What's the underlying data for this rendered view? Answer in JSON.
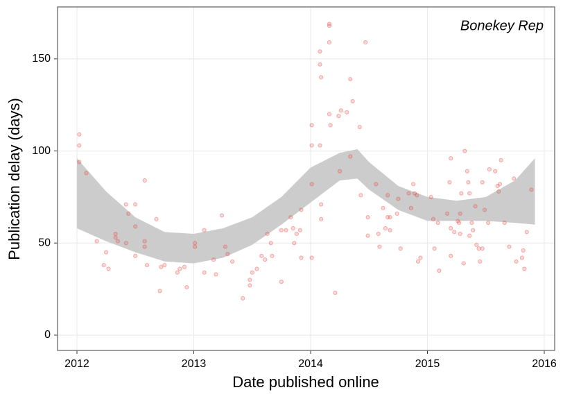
{
  "chart_data": {
    "type": "scatter",
    "xlabel": "Date published online",
    "ylabel": "Publication delay (days)",
    "annotation": "Bonekey Rep",
    "xlim": [
      2011.834,
      2016.089
    ],
    "ylim": [
      -8.3,
      178.2
    ],
    "xticks": [
      2012,
      2013,
      2014,
      2015,
      2016
    ],
    "yticks": [
      0,
      50,
      100,
      150
    ],
    "grid": true,
    "series": [
      {
        "color": "#e8433a",
        "x": [
          2012.02,
          2012.02,
          2012.02,
          2012.08,
          2012.17,
          2012.23,
          2012.25,
          2012.27,
          2012.33,
          2012.33,
          2012.35,
          2012.42,
          2012.44,
          2012.42,
          2012.5,
          2012.5,
          2012.5,
          2012.58,
          2012.58,
          2012.58,
          2012.6,
          2012.68,
          2012.71,
          2012.72,
          2012.75,
          2012.86,
          2012.88,
          2012.92,
          2012.94,
          2013.01,
          2013.01,
          2013.09,
          2013.09,
          2013.17,
          2013.19,
          2013.24,
          2013.27,
          2013.29,
          2013.33,
          2013.42,
          2013.48,
          2013.48,
          2013.5,
          2013.54,
          2013.58,
          2013.61,
          2013.63,
          2013.66,
          2013.67,
          2013.75,
          2013.75,
          2013.79,
          2013.83,
          2013.85,
          2013.86,
          2013.88,
          2013.91,
          2013.92,
          2013.92,
          2014.01,
          2014.01,
          2014.01,
          2014.01,
          2014.08,
          2014.08,
          2014.08,
          2014.09,
          2014.09,
          2014.09,
          2014.16,
          2014.16,
          2014.16,
          2014.16,
          2014.17,
          2014.21,
          2014.24,
          2014.25,
          2014.26,
          2014.31,
          2014.34,
          2014.34,
          2014.36,
          2014.42,
          2014.43,
          2014.47,
          2014.49,
          2014.49,
          2014.56,
          2014.58,
          2014.59,
          2014.62,
          2014.64,
          2014.66,
          2014.66,
          2014.68,
          2014.68,
          2014.74,
          2014.75,
          2014.77,
          2014.84,
          2014.86,
          2014.88,
          2014.89,
          2014.91,
          2014.92,
          2014.94,
          2015.03,
          2015.05,
          2015.06,
          2015.09,
          2015.1,
          2015.17,
          2015.19,
          2015.2,
          2015.2,
          2015.2,
          2015.23,
          2015.26,
          2015.27,
          2015.28,
          2015.28,
          2015.29,
          2015.31,
          2015.32,
          2015.34,
          2015.35,
          2015.36,
          2015.36,
          2015.38,
          2015.39,
          2015.41,
          2015.42,
          2015.44,
          2015.45,
          2015.47,
          2015.47,
          2015.49,
          2015.52,
          2015.53,
          2015.58,
          2015.6,
          2015.61,
          2015.62,
          2015.63,
          2015.66,
          2015.7,
          2015.74,
          2015.76,
          2015.81,
          2015.82,
          2015.83,
          2015.85,
          2015.89
        ],
        "values": [
          109,
          103,
          94,
          88,
          51,
          38,
          45,
          36,
          55,
          53,
          51,
          71,
          66,
          50,
          71,
          59,
          43,
          84,
          51,
          48,
          38,
          63,
          24,
          37,
          38,
          34,
          36,
          37,
          26,
          50,
          48,
          57,
          34,
          41,
          33,
          65,
          48,
          44,
          40,
          20,
          30,
          27,
          34,
          36,
          43,
          41,
          55,
          50,
          43,
          29,
          57,
          57,
          64,
          58,
          50,
          55,
          57,
          42,
          68,
          114,
          103,
          82,
          42,
          103,
          147,
          154,
          140,
          71,
          63,
          169,
          168,
          159,
          120,
          114,
          23,
          119,
          89,
          122,
          121,
          139,
          97,
          127,
          113,
          76,
          159,
          64,
          54,
          82,
          55,
          48,
          69,
          58,
          76,
          64,
          64,
          57,
          66,
          74,
          47,
          77,
          69,
          82,
          77,
          76,
          40,
          42,
          75,
          63,
          47,
          61,
          35,
          66,
          83,
          96,
          43,
          58,
          56,
          62,
          61,
          55,
          66,
          77,
          39,
          100,
          89,
          83,
          54,
          77,
          61,
          57,
          70,
          49,
          47,
          40,
          47,
          83,
          68,
          61,
          90,
          89,
          81,
          78,
          82,
          95,
          61,
          48,
          85,
          40,
          42,
          46,
          36,
          56,
          79
        ]
      }
    ],
    "band": {
      "color": "#cccccc",
      "x": [
        2012.0,
        2012.25,
        2012.5,
        2012.75,
        2013.0,
        2013.25,
        2013.5,
        2013.75,
        2014.0,
        2014.25,
        2014.4,
        2014.5,
        2014.75,
        2015.0,
        2015.25,
        2015.5,
        2015.75,
        2015.92
      ],
      "upper": [
        96,
        78,
        64,
        56,
        55,
        58,
        64,
        75,
        91,
        99,
        101,
        94,
        81,
        75,
        73,
        75,
        84,
        96
      ],
      "lower": [
        58,
        51,
        45,
        40,
        39,
        42,
        49,
        60,
        72,
        84,
        85,
        79,
        68,
        62,
        62,
        62,
        61,
        60
      ]
    }
  }
}
